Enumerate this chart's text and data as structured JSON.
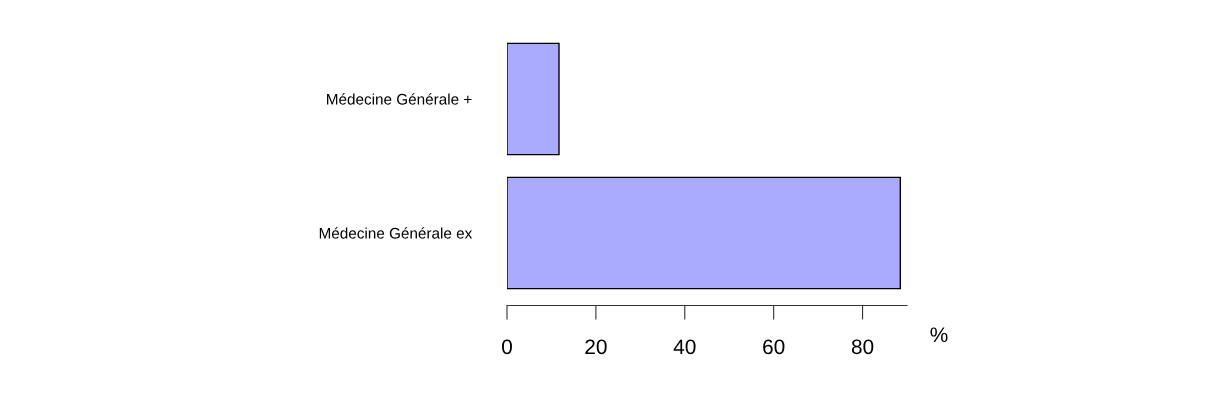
{
  "chart_data": {
    "type": "bar",
    "orientation": "horizontal",
    "categories": [
      "Médecine Générale +",
      "Médecine Générale ex"
    ],
    "values": [
      11.7,
      88.5
    ],
    "color": "#aaaaff",
    "xlabel": "%",
    "xlim": [
      0,
      90
    ],
    "xticks": [
      0,
      20,
      40,
      60,
      80
    ],
    "grid": false
  }
}
